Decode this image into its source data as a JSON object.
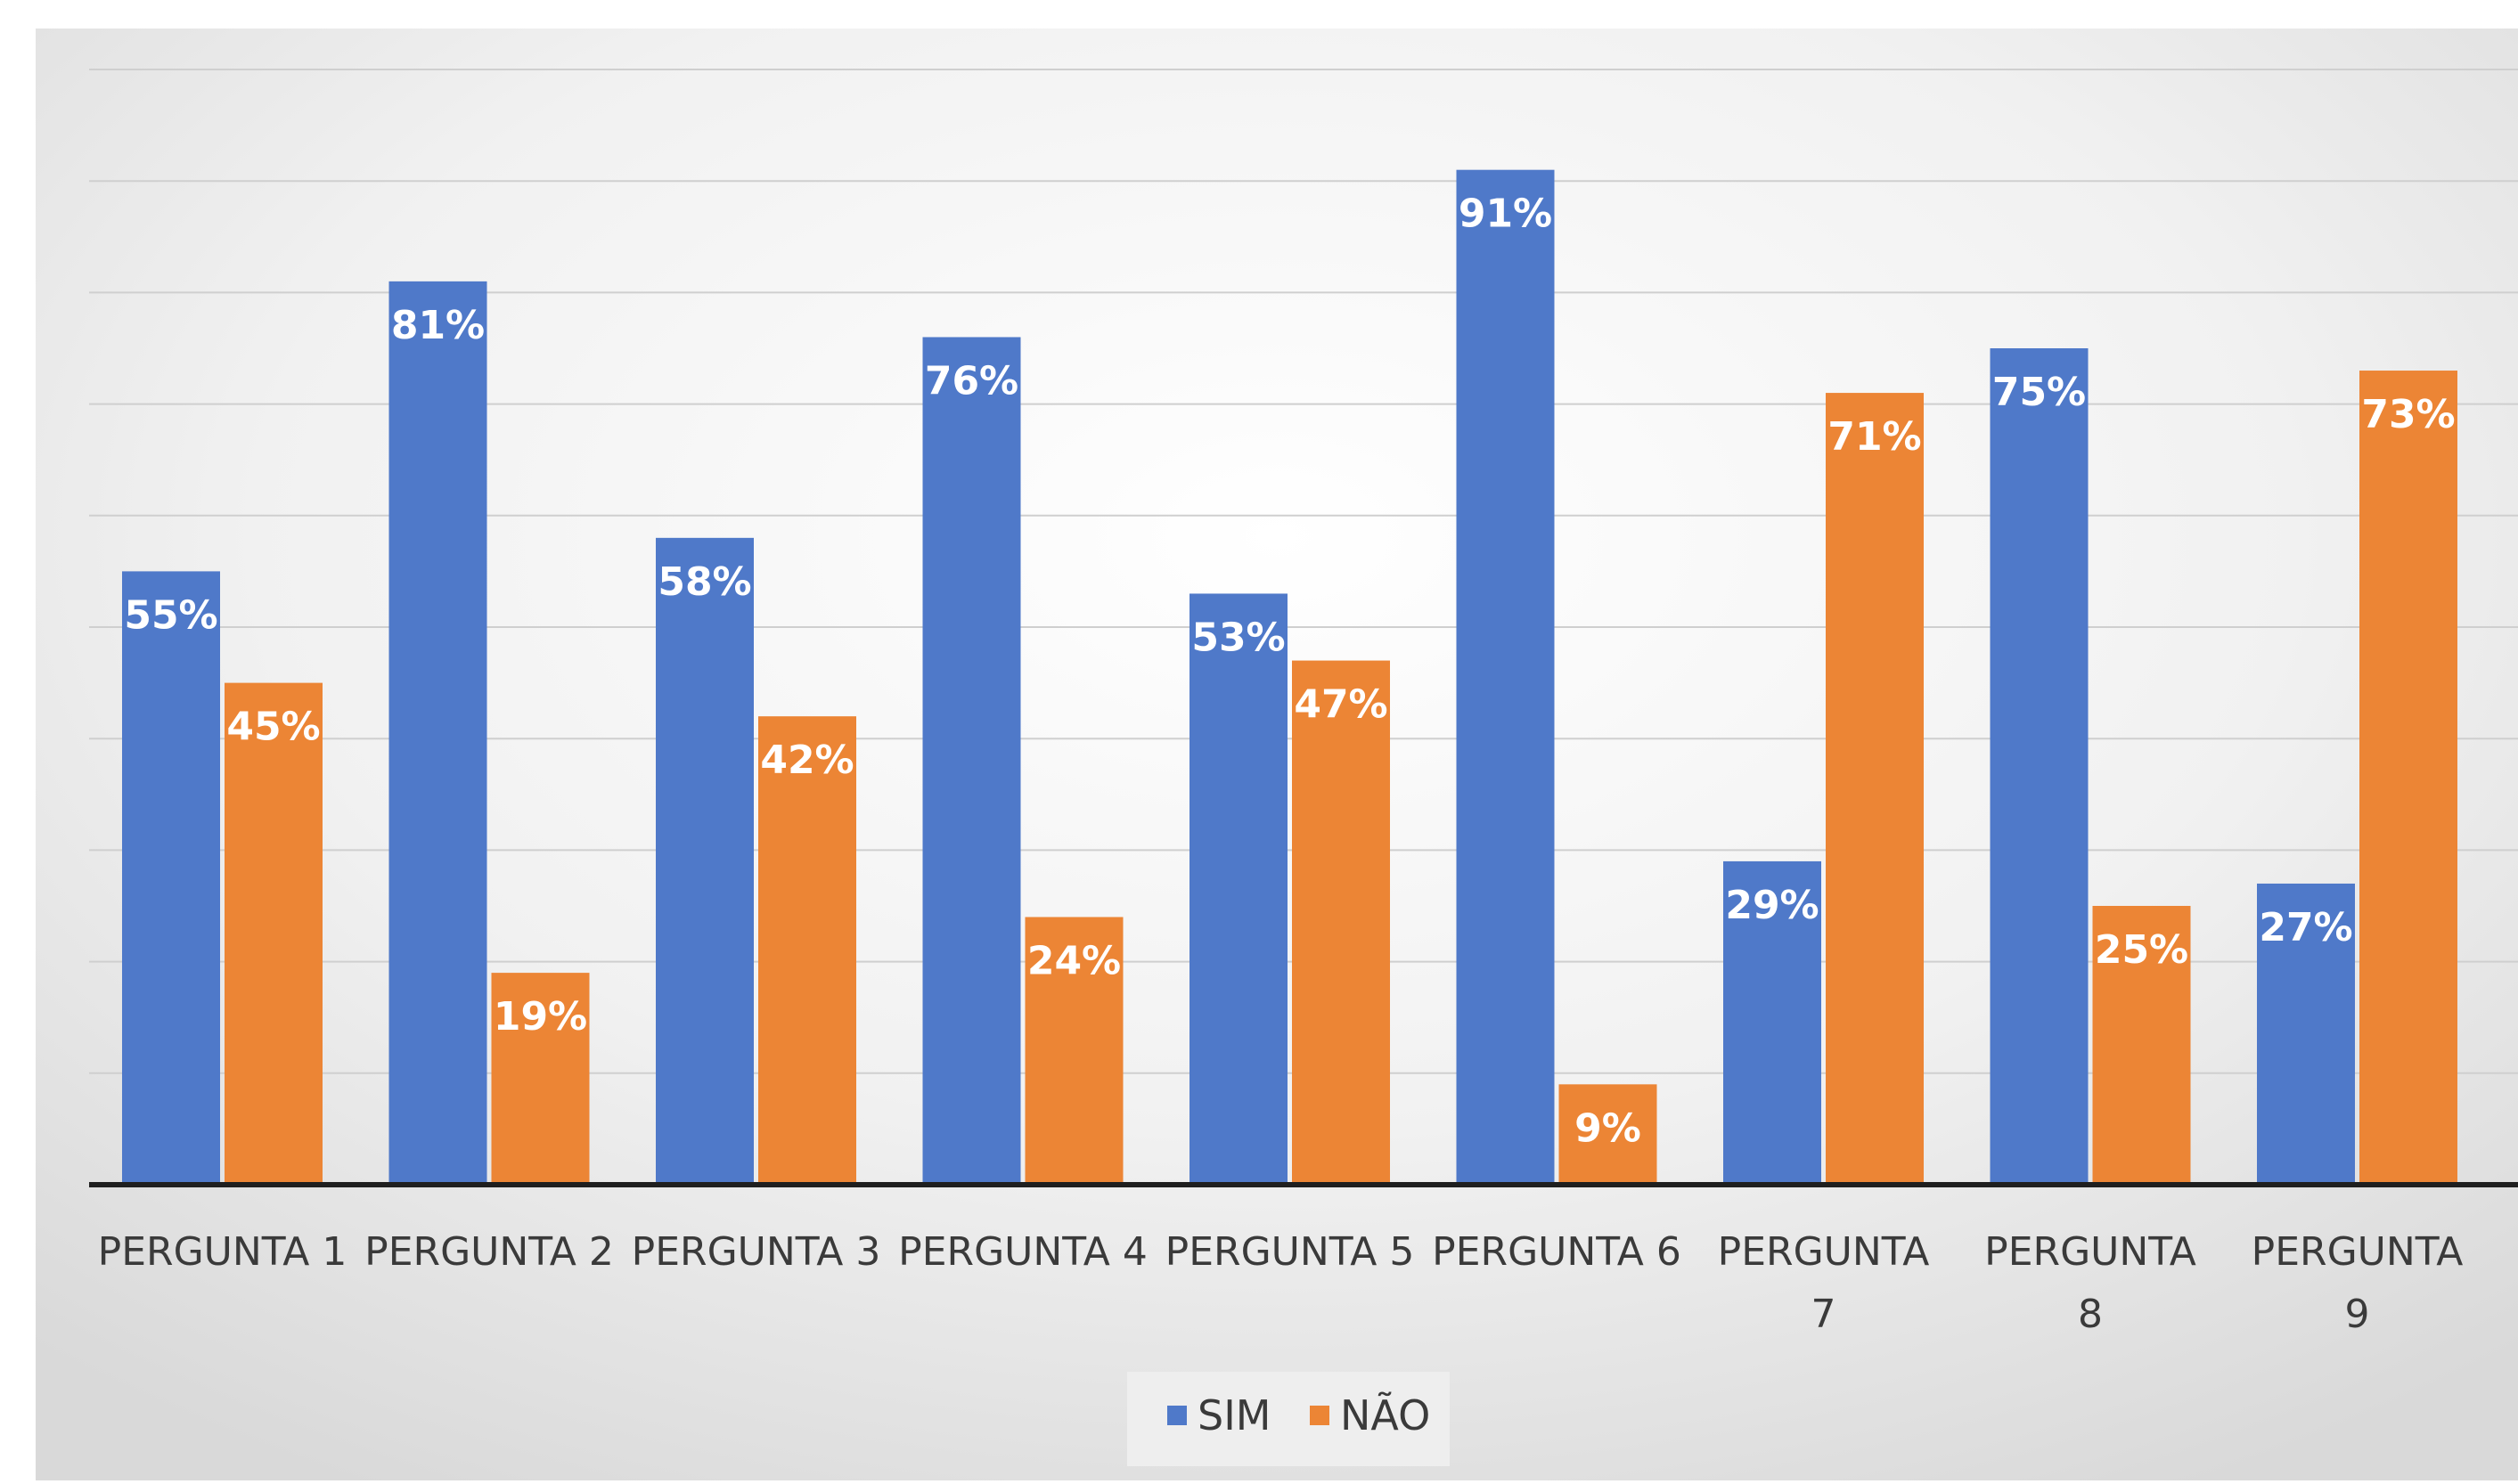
{
  "chart_data": {
    "type": "bar",
    "categories": [
      [
        "PERGUNTA 1"
      ],
      [
        "PERGUNTA 2"
      ],
      [
        "PERGUNTA 3"
      ],
      [
        "PERGUNTA 4"
      ],
      [
        "PERGUNTA 5"
      ],
      [
        "PERGUNTA 6"
      ],
      [
        "PERGUNTA",
        "7"
      ],
      [
        "PERGUNTA",
        "8"
      ],
      [
        "PERGUNTA",
        "9"
      ]
    ],
    "series": [
      {
        "name": "SIM",
        "color": "#4f79c9",
        "values": [
          55,
          81,
          58,
          76,
          53,
          91,
          29,
          75,
          27
        ],
        "labels": [
          "55%",
          "81%",
          "58%",
          "76%",
          "53%",
          "91%",
          "29%",
          "75%",
          "27%"
        ]
      },
      {
        "name": "NÃO",
        "color": "#ec8535",
        "values": [
          45,
          19,
          42,
          24,
          47,
          9,
          71,
          25,
          73
        ],
        "labels": [
          "45%",
          "19%",
          "42%",
          "24%",
          "47%",
          "9%",
          "71%",
          "25%",
          "73%"
        ]
      }
    ],
    "ylim": [
      0,
      100
    ],
    "gridlines": true,
    "legend_position": "bottom-center",
    "title": "",
    "xlabel": "",
    "ylabel": ""
  }
}
